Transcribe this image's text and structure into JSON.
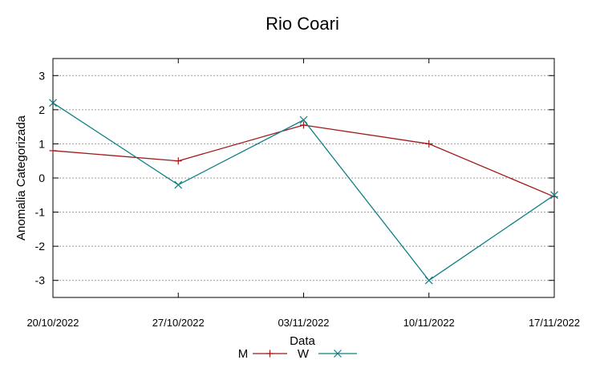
{
  "chart_data": {
    "type": "line",
    "title": "Rio Coari",
    "xlabel": "Data",
    "ylabel": "Anomalia Categorizada",
    "categories": [
      "20/10/2022",
      "27/10/2022",
      "03/11/2022",
      "10/11/2022",
      "17/11/2022"
    ],
    "yticks": [
      "3",
      "2",
      "1",
      "0",
      "-1",
      "-2",
      "-3"
    ],
    "ylim": [
      -3.5,
      3.5
    ],
    "grid": true,
    "legend": "bottom",
    "series": [
      {
        "name": "M",
        "color": "#a01818",
        "marker": "+",
        "values": [
          0.8,
          0.5,
          1.55,
          1.0,
          -0.55
        ]
      },
      {
        "name": "W",
        "color": "#0f7f85",
        "marker": "x",
        "values": [
          2.2,
          -0.2,
          1.7,
          -3.0,
          -0.5
        ]
      }
    ]
  }
}
